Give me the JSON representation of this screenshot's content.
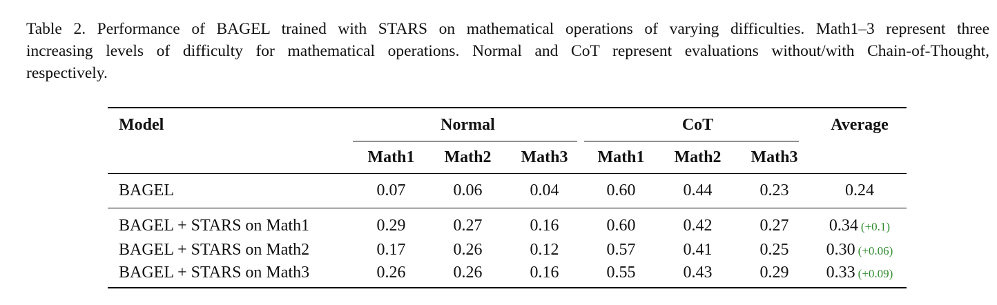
{
  "caption": {
    "lines": [
      "Table 2. Performance of BAGEL trained with STARS on mathematical operations of varying difficulties. Math1–3 represent three",
      "increasing levels of difficulty for mathematical operations. Normal and CoT represent evaluations without/with Chain-of-Thought,",
      "respectively."
    ]
  },
  "table": {
    "header": {
      "model": "Model",
      "group_normal": "Normal",
      "group_cot": "CoT",
      "average": "Average",
      "subcols": [
        "Math1",
        "Math2",
        "Math3",
        "Math1",
        "Math2",
        "Math3"
      ]
    },
    "baseline": {
      "model": "BAGEL",
      "values": [
        "0.07",
        "0.06",
        "0.04",
        "0.60",
        "0.44",
        "0.23"
      ],
      "average": "0.24"
    },
    "rows": [
      {
        "model": "BAGEL + STARS on Math1",
        "values": [
          "0.29",
          "0.27",
          "0.16",
          "0.60",
          "0.42",
          "0.27"
        ],
        "average": "0.34",
        "delta": "(+0.1)"
      },
      {
        "model": "BAGEL + STARS on Math2",
        "values": [
          "0.17",
          "0.26",
          "0.12",
          "0.57",
          "0.41",
          "0.25"
        ],
        "average": "0.30",
        "delta": "(+0.06)"
      },
      {
        "model": "BAGEL + STARS on Math3",
        "values": [
          "0.26",
          "0.26",
          "0.16",
          "0.55",
          "0.43",
          "0.29"
        ],
        "average": "0.33",
        "delta": "(+0.09)"
      }
    ],
    "delta_color": "#2e8b2e"
  }
}
